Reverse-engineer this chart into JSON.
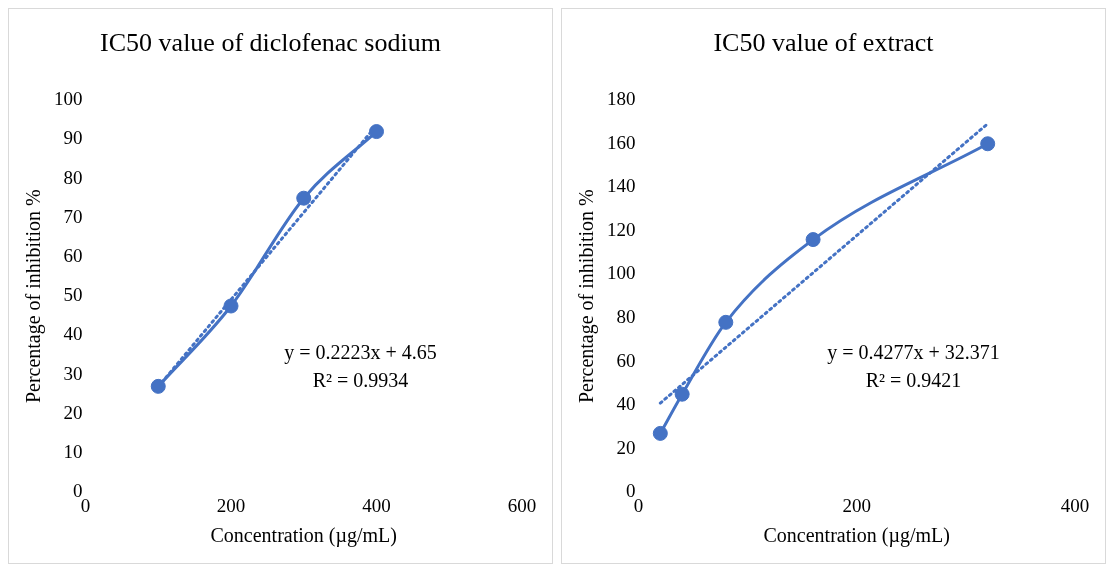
{
  "chart_data": [
    {
      "type": "line",
      "title": "IC50 value of diclofenac sodium",
      "xlabel": "Concentration (µg/mL)",
      "ylabel": "Percentage of inhibition %",
      "xlim": [
        0,
        600
      ],
      "xticks": [
        0,
        200,
        400,
        600
      ],
      "ylim": [
        0,
        100
      ],
      "yticks": [
        0,
        10,
        20,
        30,
        40,
        50,
        60,
        70,
        80,
        90,
        100
      ],
      "grid": false,
      "legend": false,
      "series": [
        {
          "type": "line",
          "color": "#4472c4",
          "marker": "circle",
          "line_style": "solid",
          "x": [
            100,
            200,
            300,
            400
          ],
          "values": [
            27,
            47.5,
            75,
            92
          ]
        },
        {
          "type": "line",
          "color": "#4472c4",
          "line_style": "dotted",
          "x": [
            100,
            400
          ],
          "values": [
            26.9,
            93.6
          ]
        }
      ],
      "annotations": [
        "y = 0.2223x + 4.65",
        "R² = 0.9934"
      ]
    },
    {
      "type": "line",
      "title": "IC50 value of extract",
      "xlabel": "Concentration (µg/mL)",
      "ylabel": "Percentage of inhibition %",
      "xlim": [
        0,
        400
      ],
      "xticks": [
        0,
        200,
        400
      ],
      "ylim": [
        0,
        180
      ],
      "yticks": [
        0,
        20,
        40,
        60,
        80,
        100,
        120,
        140,
        160,
        180
      ],
      "grid": false,
      "legend": false,
      "series": [
        {
          "type": "line",
          "color": "#4472c4",
          "marker": "circle",
          "line_style": "solid",
          "x": [
            20,
            40,
            80,
            160,
            320
          ],
          "values": [
            27,
            45,
            78,
            116,
            160
          ]
        },
        {
          "type": "line",
          "color": "#4472c4",
          "line_style": "dotted",
          "x": [
            20,
            320
          ],
          "values": [
            40.9,
            169.2
          ]
        }
      ],
      "annotations": [
        "y = 0.4277x + 32.371",
        "R² = 0.9421"
      ]
    }
  ]
}
